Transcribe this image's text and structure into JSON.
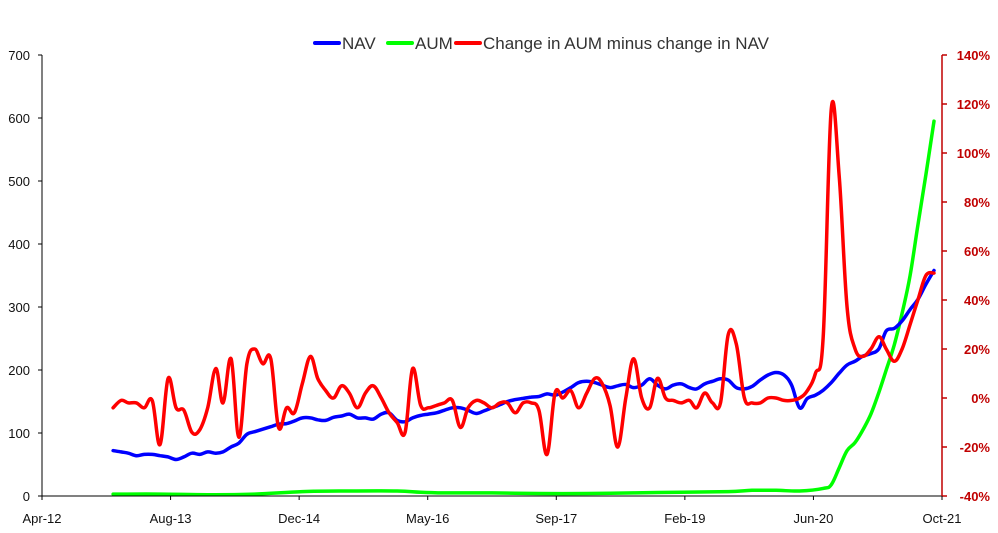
{
  "chart_data": {
    "type": "line",
    "title": "",
    "xlabel": "",
    "ylabel": "",
    "legend_position": "top-center",
    "grid": false,
    "x_range": [
      "2012-04-01",
      "2021-10-01"
    ],
    "x_tick_labels": [
      "Apr-12",
      "Aug-13",
      "Dec-14",
      "May-16",
      "Sep-17",
      "Feb-19",
      "Jun-20",
      "Oct-21"
    ],
    "y_left": {
      "range": [
        0,
        700
      ],
      "ticks": [
        "0",
        "100",
        "200",
        "300",
        "400",
        "500",
        "600",
        "700"
      ]
    },
    "y_right": {
      "range": [
        -40,
        140
      ],
      "unit": "%",
      "ticks": [
        "-40%",
        "-20%",
        "0%",
        "20%",
        "40%",
        "60%",
        "80%",
        "100%",
        "120%",
        "140%"
      ]
    },
    "series": [
      {
        "name": "NAV",
        "axis": "left",
        "color": "#0000ff",
        "points": [
          [
            "2012-12-31",
            72
          ],
          [
            "2013-01-31",
            70
          ],
          [
            "2013-02-28",
            68
          ],
          [
            "2013-03-31",
            64
          ],
          [
            "2013-04-30",
            66
          ],
          [
            "2013-05-31",
            66
          ],
          [
            "2013-06-30",
            64
          ],
          [
            "2013-07-31",
            62
          ],
          [
            "2013-08-31",
            58
          ],
          [
            "2013-09-30",
            62
          ],
          [
            "2013-10-31",
            68
          ],
          [
            "2013-11-30",
            66
          ],
          [
            "2013-12-31",
            70
          ],
          [
            "2014-01-31",
            68
          ],
          [
            "2014-02-28",
            70
          ],
          [
            "2014-03-31",
            78
          ],
          [
            "2014-04-30",
            84
          ],
          [
            "2014-05-31",
            98
          ],
          [
            "2014-06-30",
            102
          ],
          [
            "2014-07-31",
            106
          ],
          [
            "2014-08-31",
            110
          ],
          [
            "2014-09-30",
            114
          ],
          [
            "2014-10-31",
            115
          ],
          [
            "2014-11-30",
            119
          ],
          [
            "2014-12-31",
            124
          ],
          [
            "2015-01-31",
            124
          ],
          [
            "2015-02-28",
            121
          ],
          [
            "2015-03-31",
            120
          ],
          [
            "2015-04-30",
            125
          ],
          [
            "2015-05-31",
            127
          ],
          [
            "2015-06-30",
            130
          ],
          [
            "2015-07-31",
            124
          ],
          [
            "2015-08-31",
            124
          ],
          [
            "2015-09-30",
            122
          ],
          [
            "2015-10-31",
            130
          ],
          [
            "2015-11-30",
            132
          ],
          [
            "2015-12-31",
            120
          ],
          [
            "2016-01-31",
            118
          ],
          [
            "2016-02-29",
            124
          ],
          [
            "2016-03-31",
            128
          ],
          [
            "2016-04-30",
            130
          ],
          [
            "2016-05-31",
            132
          ],
          [
            "2016-06-30",
            136
          ],
          [
            "2016-07-31",
            140
          ],
          [
            "2016-08-31",
            140
          ],
          [
            "2016-09-30",
            136
          ],
          [
            "2016-10-31",
            131
          ],
          [
            "2016-11-30",
            135
          ],
          [
            "2016-12-31",
            140
          ],
          [
            "2017-01-31",
            145
          ],
          [
            "2017-02-28",
            150
          ],
          [
            "2017-03-31",
            153
          ],
          [
            "2017-04-30",
            155
          ],
          [
            "2017-05-31",
            157
          ],
          [
            "2017-06-30",
            158
          ],
          [
            "2017-07-31",
            162
          ],
          [
            "2017-08-31",
            160
          ],
          [
            "2017-09-30",
            165
          ],
          [
            "2017-10-31",
            172
          ],
          [
            "2017-11-30",
            180
          ],
          [
            "2017-12-31",
            182
          ],
          [
            "2018-01-31",
            180
          ],
          [
            "2018-02-28",
            176
          ],
          [
            "2018-03-31",
            172
          ],
          [
            "2018-04-30",
            175
          ],
          [
            "2018-05-31",
            177
          ],
          [
            "2018-06-30",
            172
          ],
          [
            "2018-07-31",
            176
          ],
          [
            "2018-08-31",
            186
          ],
          [
            "2018-09-30",
            176
          ],
          [
            "2018-10-31",
            170
          ],
          [
            "2018-11-30",
            176
          ],
          [
            "2018-12-31",
            178
          ],
          [
            "2019-01-31",
            172
          ],
          [
            "2019-02-28",
            170
          ],
          [
            "2019-03-31",
            178
          ],
          [
            "2019-04-30",
            182
          ],
          [
            "2019-05-31",
            186
          ],
          [
            "2019-06-30",
            184
          ],
          [
            "2019-07-31",
            172
          ],
          [
            "2019-08-31",
            170
          ],
          [
            "2019-09-30",
            174
          ],
          [
            "2019-10-31",
            184
          ],
          [
            "2019-11-30",
            192
          ],
          [
            "2019-12-31",
            196
          ],
          [
            "2020-01-31",
            192
          ],
          [
            "2020-02-29",
            176
          ],
          [
            "2020-03-31",
            140
          ],
          [
            "2020-04-30",
            155
          ],
          [
            "2020-05-31",
            160
          ],
          [
            "2020-06-30",
            168
          ],
          [
            "2020-07-31",
            180
          ],
          [
            "2020-08-31",
            195
          ],
          [
            "2020-09-30",
            208
          ],
          [
            "2020-10-31",
            214
          ],
          [
            "2020-11-30",
            222
          ],
          [
            "2020-12-31",
            226
          ],
          [
            "2021-01-31",
            234
          ],
          [
            "2021-02-28",
            262
          ],
          [
            "2021-03-31",
            266
          ],
          [
            "2021-04-30",
            278
          ],
          [
            "2021-05-31",
            296
          ],
          [
            "2021-06-30",
            312
          ],
          [
            "2021-07-31",
            336
          ],
          [
            "2021-08-31",
            358
          ]
        ]
      },
      {
        "name": "AUM",
        "axis": "left",
        "color": "#00ff00",
        "points": [
          [
            "2012-12-31",
            3
          ],
          [
            "2013-06-30",
            3
          ],
          [
            "2013-12-31",
            2
          ],
          [
            "2014-06-30",
            3
          ],
          [
            "2014-12-31",
            7
          ],
          [
            "2015-06-30",
            8
          ],
          [
            "2015-12-31",
            8
          ],
          [
            "2016-03-31",
            6
          ],
          [
            "2016-06-30",
            5
          ],
          [
            "2016-12-31",
            5
          ],
          [
            "2017-06-30",
            4
          ],
          [
            "2017-12-31",
            4
          ],
          [
            "2018-06-30",
            5
          ],
          [
            "2018-12-31",
            6
          ],
          [
            "2019-06-30",
            7
          ],
          [
            "2019-09-30",
            9
          ],
          [
            "2019-12-31",
            9
          ],
          [
            "2020-03-31",
            8
          ],
          [
            "2020-06-30",
            12
          ],
          [
            "2020-07-31",
            18
          ],
          [
            "2020-08-31",
            45
          ],
          [
            "2020-09-30",
            72
          ],
          [
            "2020-10-31",
            85
          ],
          [
            "2020-11-30",
            105
          ],
          [
            "2020-12-31",
            130
          ],
          [
            "2021-01-31",
            165
          ],
          [
            "2021-02-28",
            200
          ],
          [
            "2021-03-31",
            240
          ],
          [
            "2021-04-30",
            290
          ],
          [
            "2021-05-31",
            350
          ],
          [
            "2021-06-30",
            430
          ],
          [
            "2021-07-31",
            510
          ],
          [
            "2021-08-31",
            595
          ]
        ]
      },
      {
        "name": "Change in AUM minus change in NAV",
        "axis": "right",
        "unit": "%",
        "color": "#ff0000",
        "points": [
          [
            "2012-12-31",
            -4
          ],
          [
            "2013-01-31",
            -1
          ],
          [
            "2013-02-28",
            -2
          ],
          [
            "2013-03-31",
            -2
          ],
          [
            "2013-04-30",
            -4
          ],
          [
            "2013-05-31",
            -1
          ],
          [
            "2013-06-30",
            -19
          ],
          [
            "2013-07-31",
            8
          ],
          [
            "2013-08-31",
            -4
          ],
          [
            "2013-09-30",
            -5
          ],
          [
            "2013-10-31",
            -14
          ],
          [
            "2013-11-30",
            -13
          ],
          [
            "2013-12-31",
            -4
          ],
          [
            "2014-01-31",
            12
          ],
          [
            "2014-02-28",
            -2
          ],
          [
            "2014-03-31",
            16
          ],
          [
            "2014-04-30",
            -16
          ],
          [
            "2014-05-31",
            14
          ],
          [
            "2014-06-30",
            20
          ],
          [
            "2014-07-31",
            14
          ],
          [
            "2014-08-31",
            16
          ],
          [
            "2014-09-30",
            -12
          ],
          [
            "2014-10-31",
            -4
          ],
          [
            "2014-11-30",
            -6
          ],
          [
            "2014-12-31",
            6
          ],
          [
            "2015-01-31",
            17
          ],
          [
            "2015-02-28",
            8
          ],
          [
            "2015-03-31",
            3
          ],
          [
            "2015-04-30",
            0
          ],
          [
            "2015-05-31",
            5
          ],
          [
            "2015-06-30",
            2
          ],
          [
            "2015-07-31",
            -4
          ],
          [
            "2015-08-31",
            2
          ],
          [
            "2015-09-30",
            5
          ],
          [
            "2015-10-31",
            0
          ],
          [
            "2015-11-30",
            -6
          ],
          [
            "2015-12-31",
            -10
          ],
          [
            "2016-01-31",
            -14
          ],
          [
            "2016-02-29",
            12
          ],
          [
            "2016-03-31",
            -3
          ],
          [
            "2016-04-30",
            -4
          ],
          [
            "2016-05-31",
            -3
          ],
          [
            "2016-06-30",
            -2
          ],
          [
            "2016-07-31",
            -1
          ],
          [
            "2016-08-31",
            -12
          ],
          [
            "2016-09-30",
            -4
          ],
          [
            "2016-10-31",
            -1
          ],
          [
            "2016-11-30",
            -2
          ],
          [
            "2016-12-31",
            -4
          ],
          [
            "2017-01-31",
            -2
          ],
          [
            "2017-02-28",
            -2
          ],
          [
            "2017-03-31",
            -6
          ],
          [
            "2017-04-30",
            -2
          ],
          [
            "2017-05-31",
            -2
          ],
          [
            "2017-06-30",
            -5
          ],
          [
            "2017-07-31",
            -23
          ],
          [
            "2017-08-31",
            2
          ],
          [
            "2017-09-30",
            0
          ],
          [
            "2017-10-31",
            3
          ],
          [
            "2017-11-30",
            -4
          ],
          [
            "2017-12-31",
            2
          ],
          [
            "2018-01-31",
            8
          ],
          [
            "2018-02-28",
            6
          ],
          [
            "2018-03-31",
            -3
          ],
          [
            "2018-04-30",
            -20
          ],
          [
            "2018-05-31",
            0
          ],
          [
            "2018-06-30",
            16
          ],
          [
            "2018-07-31",
            0
          ],
          [
            "2018-08-31",
            -4
          ],
          [
            "2018-09-30",
            8
          ],
          [
            "2018-10-31",
            0
          ],
          [
            "2018-11-30",
            -1
          ],
          [
            "2018-12-31",
            -2
          ],
          [
            "2019-01-31",
            -1
          ],
          [
            "2019-02-28",
            -4
          ],
          [
            "2019-03-31",
            2
          ],
          [
            "2019-04-30",
            -2
          ],
          [
            "2019-05-31",
            -2
          ],
          [
            "2019-06-30",
            26
          ],
          [
            "2019-07-31",
            22
          ],
          [
            "2019-08-31",
            0
          ],
          [
            "2019-09-30",
            -2
          ],
          [
            "2019-10-31",
            -2
          ],
          [
            "2019-11-30",
            0
          ],
          [
            "2019-12-31",
            0
          ],
          [
            "2020-01-31",
            -1
          ],
          [
            "2020-02-29",
            -1
          ],
          [
            "2020-03-31",
            0
          ],
          [
            "2020-04-30",
            3
          ],
          [
            "2020-05-31",
            10
          ],
          [
            "2020-06-30",
            25
          ],
          [
            "2020-07-31",
            118
          ],
          [
            "2020-08-31",
            90
          ],
          [
            "2020-09-30",
            37
          ],
          [
            "2020-10-31",
            20
          ],
          [
            "2020-11-30",
            17
          ],
          [
            "2020-12-31",
            20
          ],
          [
            "2021-01-31",
            25
          ],
          [
            "2021-02-28",
            20
          ],
          [
            "2021-03-31",
            15
          ],
          [
            "2021-04-30",
            20
          ],
          [
            "2021-05-31",
            30
          ],
          [
            "2021-06-30",
            40
          ],
          [
            "2021-07-31",
            50
          ],
          [
            "2021-08-31",
            51
          ]
        ]
      }
    ]
  }
}
